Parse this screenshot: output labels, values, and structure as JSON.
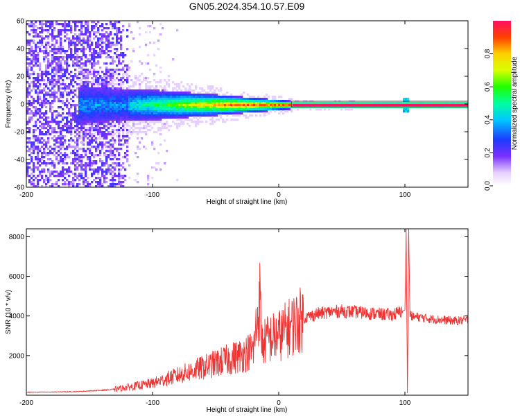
{
  "title": "GN05.2024.354.10.57.E09",
  "chart_data": [
    {
      "type": "heatmap",
      "xlabel": "Height of straight line (km)",
      "ylabel": "Frequency (Hz)",
      "xlim": [
        -200,
        150
      ],
      "ylim": [
        -60,
        60
      ],
      "xticks": [
        -200,
        -100,
        0,
        100
      ],
      "yticks": [
        60,
        40,
        20,
        0,
        -20,
        -40,
        -60
      ],
      "colorbar": {
        "label": "Normalized spectral amplitude",
        "range": [
          0,
          1
        ],
        "ticks": [
          "0.0",
          "0.2",
          "0.4",
          "0.6",
          "0.8"
        ]
      },
      "features": {
        "noise_region_x": [
          -200,
          -120
        ],
        "signal_band_center_hz": 0,
        "strong_line_start_x": 10,
        "spike_x": 100
      }
    },
    {
      "type": "line",
      "xlabel": "Height of straight line (km)",
      "ylabel": "SNR (10 * v/v)",
      "xlim": [
        -200,
        150
      ],
      "ylim": [
        0,
        8400
      ],
      "xticks": [
        -200,
        -100,
        0,
        100
      ],
      "yticks": [
        2000,
        4000,
        6000,
        8000
      ],
      "series": [
        {
          "color": "#ee3333",
          "x": [
            -200,
            -180,
            -160,
            -140,
            -130,
            -120,
            -110,
            -100,
            -90,
            -80,
            -70,
            -60,
            -50,
            -40,
            -30,
            -20,
            -15,
            -13,
            -10,
            0,
            10,
            20,
            30,
            40,
            50,
            60,
            70,
            80,
            90,
            100,
            101,
            102,
            103,
            104,
            106,
            110,
            120,
            130,
            140,
            150
          ],
          "y": [
            150,
            160,
            180,
            250,
            300,
            400,
            500,
            600,
            800,
            1000,
            1200,
            1400,
            1600,
            1800,
            2000,
            2300,
            4800,
            2500,
            2800,
            3000,
            3500,
            3900,
            4100,
            4200,
            4250,
            4200,
            4150,
            4100,
            4050,
            4300,
            8400,
            100,
            8400,
            4100,
            3950,
            3950,
            3850,
            3800,
            3750,
            3800
          ]
        }
      ]
    }
  ]
}
